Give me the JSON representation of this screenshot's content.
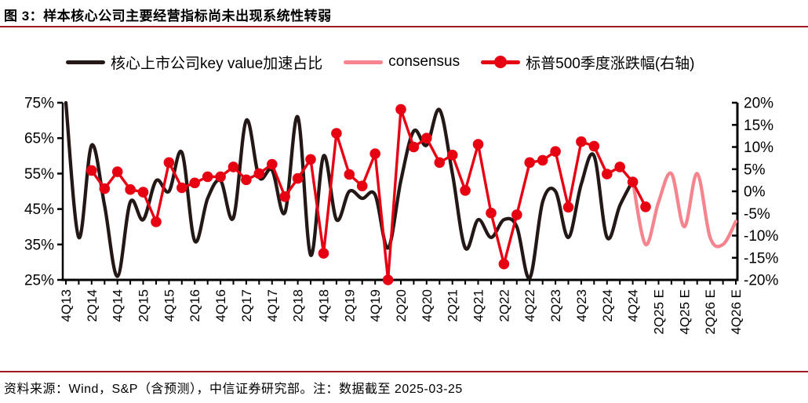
{
  "title": "图 3：样本核心公司主要经营指标尚未出现系统性转弱",
  "footer": {
    "source_note": "资料来源：Wind，S&P（含预测），中信证券研究部。注：数据截至 2025-03-25"
  },
  "colors": {
    "rule": "#9e1c20",
    "black_series": "#231815",
    "consensus_series": "#f5848f",
    "sp500_series": "#e60012",
    "axis": "#000000"
  },
  "legend": [
    {
      "label": "核心上市公司key value加速占比",
      "color": "#231815",
      "marker": false
    },
    {
      "label": "consensus",
      "color": "#f5848f",
      "marker": false
    },
    {
      "label": "标普500季度涨跌幅(右轴)",
      "color": "#e60012",
      "marker": true
    }
  ],
  "chart_data": {
    "type": "line",
    "title": "图 3：样本核心公司主要经营指标尚未出现系统性转弱",
    "x_tick_labels": [
      "4Q13",
      "2Q14",
      "4Q14",
      "2Q15",
      "4Q15",
      "2Q16",
      "4Q16",
      "2Q17",
      "4Q17",
      "2Q18",
      "4Q18",
      "2Q19",
      "4Q19",
      "2Q20",
      "4Q20",
      "2Q21",
      "4Q21",
      "2Q22",
      "4Q22",
      "2Q23",
      "4Q23",
      "2Q24",
      "4Q24",
      "2Q25 E",
      "4Q25 E",
      "2Q26 E",
      "4Q26 E"
    ],
    "quarters_per_label": 2,
    "total_quarters": 52,
    "left_axis": {
      "tick_labels": [
        "75%",
        "65%",
        "55%",
        "45%",
        "35%",
        "25%"
      ],
      "min": 25,
      "max": 75,
      "unit": "%"
    },
    "right_axis": {
      "tick_labels": [
        "20%",
        "15%",
        "10%",
        "5%",
        "0%",
        "-5%",
        "-10%",
        "-15%",
        "-20%"
      ],
      "min": -20,
      "max": 20,
      "unit": "%"
    },
    "grid": false,
    "legend_position": "top",
    "series": [
      {
        "name": "核心上市公司key value加速占比",
        "axis": "left",
        "color": "#231815",
        "style": "smooth",
        "start_quarter": 0,
        "start_label": "4Q13",
        "values": [
          75,
          37,
          63,
          46,
          26,
          47,
          42,
          53,
          50,
          61,
          36,
          48,
          53,
          42.5,
          70,
          54,
          56,
          44,
          71,
          32,
          60,
          42,
          50,
          48,
          49,
          34,
          53,
          67,
          63,
          73,
          55,
          34,
          42,
          37,
          42,
          40,
          25.5,
          47,
          50,
          37,
          52,
          60,
          37,
          46,
          53
        ]
      },
      {
        "name": "consensus",
        "axis": "left",
        "color": "#f5848f",
        "style": "smooth",
        "start_quarter": 44,
        "start_label": "4Q24",
        "values": [
          53,
          35,
          47,
          55,
          40,
          55,
          37,
          35,
          41.5
        ]
      },
      {
        "name": "标普500季度涨跌幅(右轴)",
        "axis": "right",
        "color": "#e60012",
        "style": "line-marker",
        "start_quarter": 2,
        "start_label": "2Q14",
        "values": [
          4.7,
          0.6,
          4.4,
          0.4,
          -0.2,
          -6.9,
          6.5,
          0.8,
          1.9,
          3.3,
          3.3,
          5.5,
          2.6,
          4,
          6.1,
          -1.2,
          2.9,
          7.2,
          -14,
          13.1,
          3.8,
          1.2,
          8.5,
          -20,
          18.5,
          10,
          12,
          6.5,
          8.2,
          0.2,
          10.6,
          -4.9,
          -16.4,
          -5.3,
          6.5,
          7,
          9,
          -3.6,
          11.2,
          10.2,
          3.9,
          5.5,
          2.1,
          -3.5
        ]
      }
    ]
  }
}
